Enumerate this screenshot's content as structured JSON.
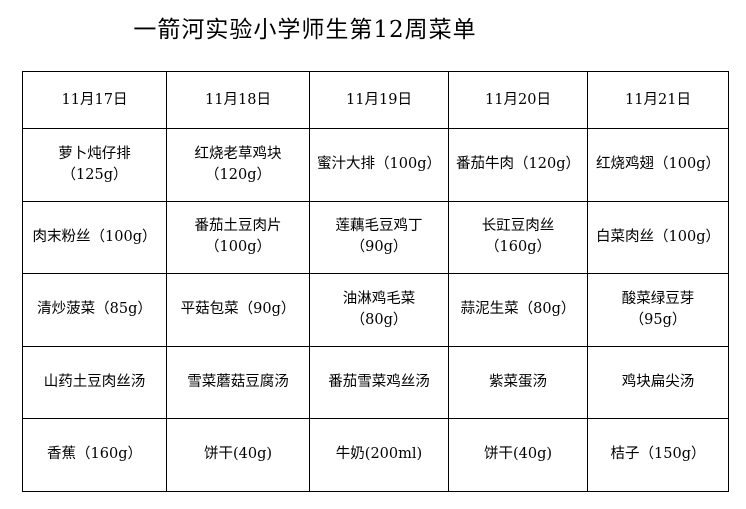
{
  "title": "一箭河实验小学师生第12周菜单",
  "table": {
    "headers": [
      "11月17日",
      "11月18日",
      "11月19日",
      "11月20日",
      "11月21日"
    ],
    "rows": [
      [
        "萝卜炖仔排\n（125g）",
        "红烧老草鸡块\n（120g）",
        "蜜汁大排（100g）",
        "番茄牛肉（120g）",
        "红烧鸡翅（100g）"
      ],
      [
        "肉末粉丝（100g）",
        "番茄土豆肉片\n（100g）",
        "莲藕毛豆鸡丁\n（90g）",
        "长豇豆肉丝\n（160g）",
        "白菜肉丝（100g）"
      ],
      [
        "清炒菠菜（85g）",
        "平菇包菜（90g）",
        "油淋鸡毛菜\n（80g）",
        "蒜泥生菜（80g）",
        "酸菜绿豆芽\n（95g）"
      ],
      [
        "山药土豆肉丝汤",
        "雪菜蘑菇豆腐汤",
        "番茄雪菜鸡丝汤",
        "紫菜蛋汤",
        "鸡块扁尖汤"
      ],
      [
        "香蕉（160g）",
        "饼干(40g)",
        "牛奶(200ml)",
        "饼干(40g)",
        "桔子（150g）"
      ]
    ]
  }
}
